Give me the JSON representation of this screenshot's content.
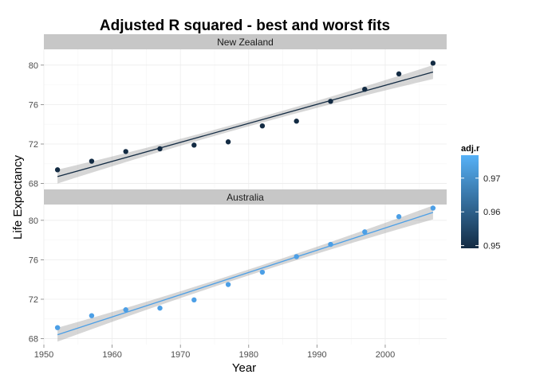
{
  "chart_data": {
    "type": "scatter",
    "title": "Adjusted R squared - best and worst fits",
    "xlabel": "Year",
    "ylabel": "Life Expectancy",
    "xlim": [
      1950,
      2009
    ],
    "ylim": [
      67.4,
      81.6
    ],
    "x_ticks": [
      1950,
      1960,
      1970,
      1980,
      1990,
      2000
    ],
    "y_ticks": [
      68,
      72,
      76,
      80
    ],
    "grid": true,
    "legend": {
      "title": "adj.r",
      "position": "right",
      "range": [
        0.9492,
        0.9768
      ],
      "ticks": [
        0.95,
        0.96,
        0.97
      ],
      "tick_labels": [
        "0.95",
        "0.96",
        "0.97"
      ],
      "low_color": "#132B43",
      "high_color": "#56B1F7"
    },
    "panels": [
      {
        "name": "New Zealand",
        "adj_r": 0.9493,
        "color": "#132B43",
        "x": [
          1952,
          1957,
          1962,
          1967,
          1972,
          1977,
          1982,
          1987,
          1992,
          1997,
          2002,
          2007
        ],
        "y": [
          69.39,
          70.26,
          71.24,
          71.52,
          71.89,
          72.22,
          73.84,
          74.32,
          76.33,
          77.55,
          79.11,
          80.2
        ],
        "fit": {
          "x": [
            1952,
            2007
          ],
          "y": [
            68.7,
            79.3
          ]
        }
      },
      {
        "name": "Australia",
        "adj_r": 0.9766,
        "color": "#4C9FE6",
        "x": [
          1952,
          1957,
          1962,
          1967,
          1972,
          1977,
          1982,
          1987,
          1992,
          1997,
          2002,
          2007
        ],
        "y": [
          69.12,
          70.33,
          70.93,
          71.1,
          71.93,
          73.49,
          74.74,
          76.32,
          77.56,
          78.83,
          80.37,
          81.24
        ],
        "fit": {
          "x": [
            1952,
            2007
          ],
          "y": [
            68.4,
            80.8
          ]
        }
      }
    ]
  }
}
